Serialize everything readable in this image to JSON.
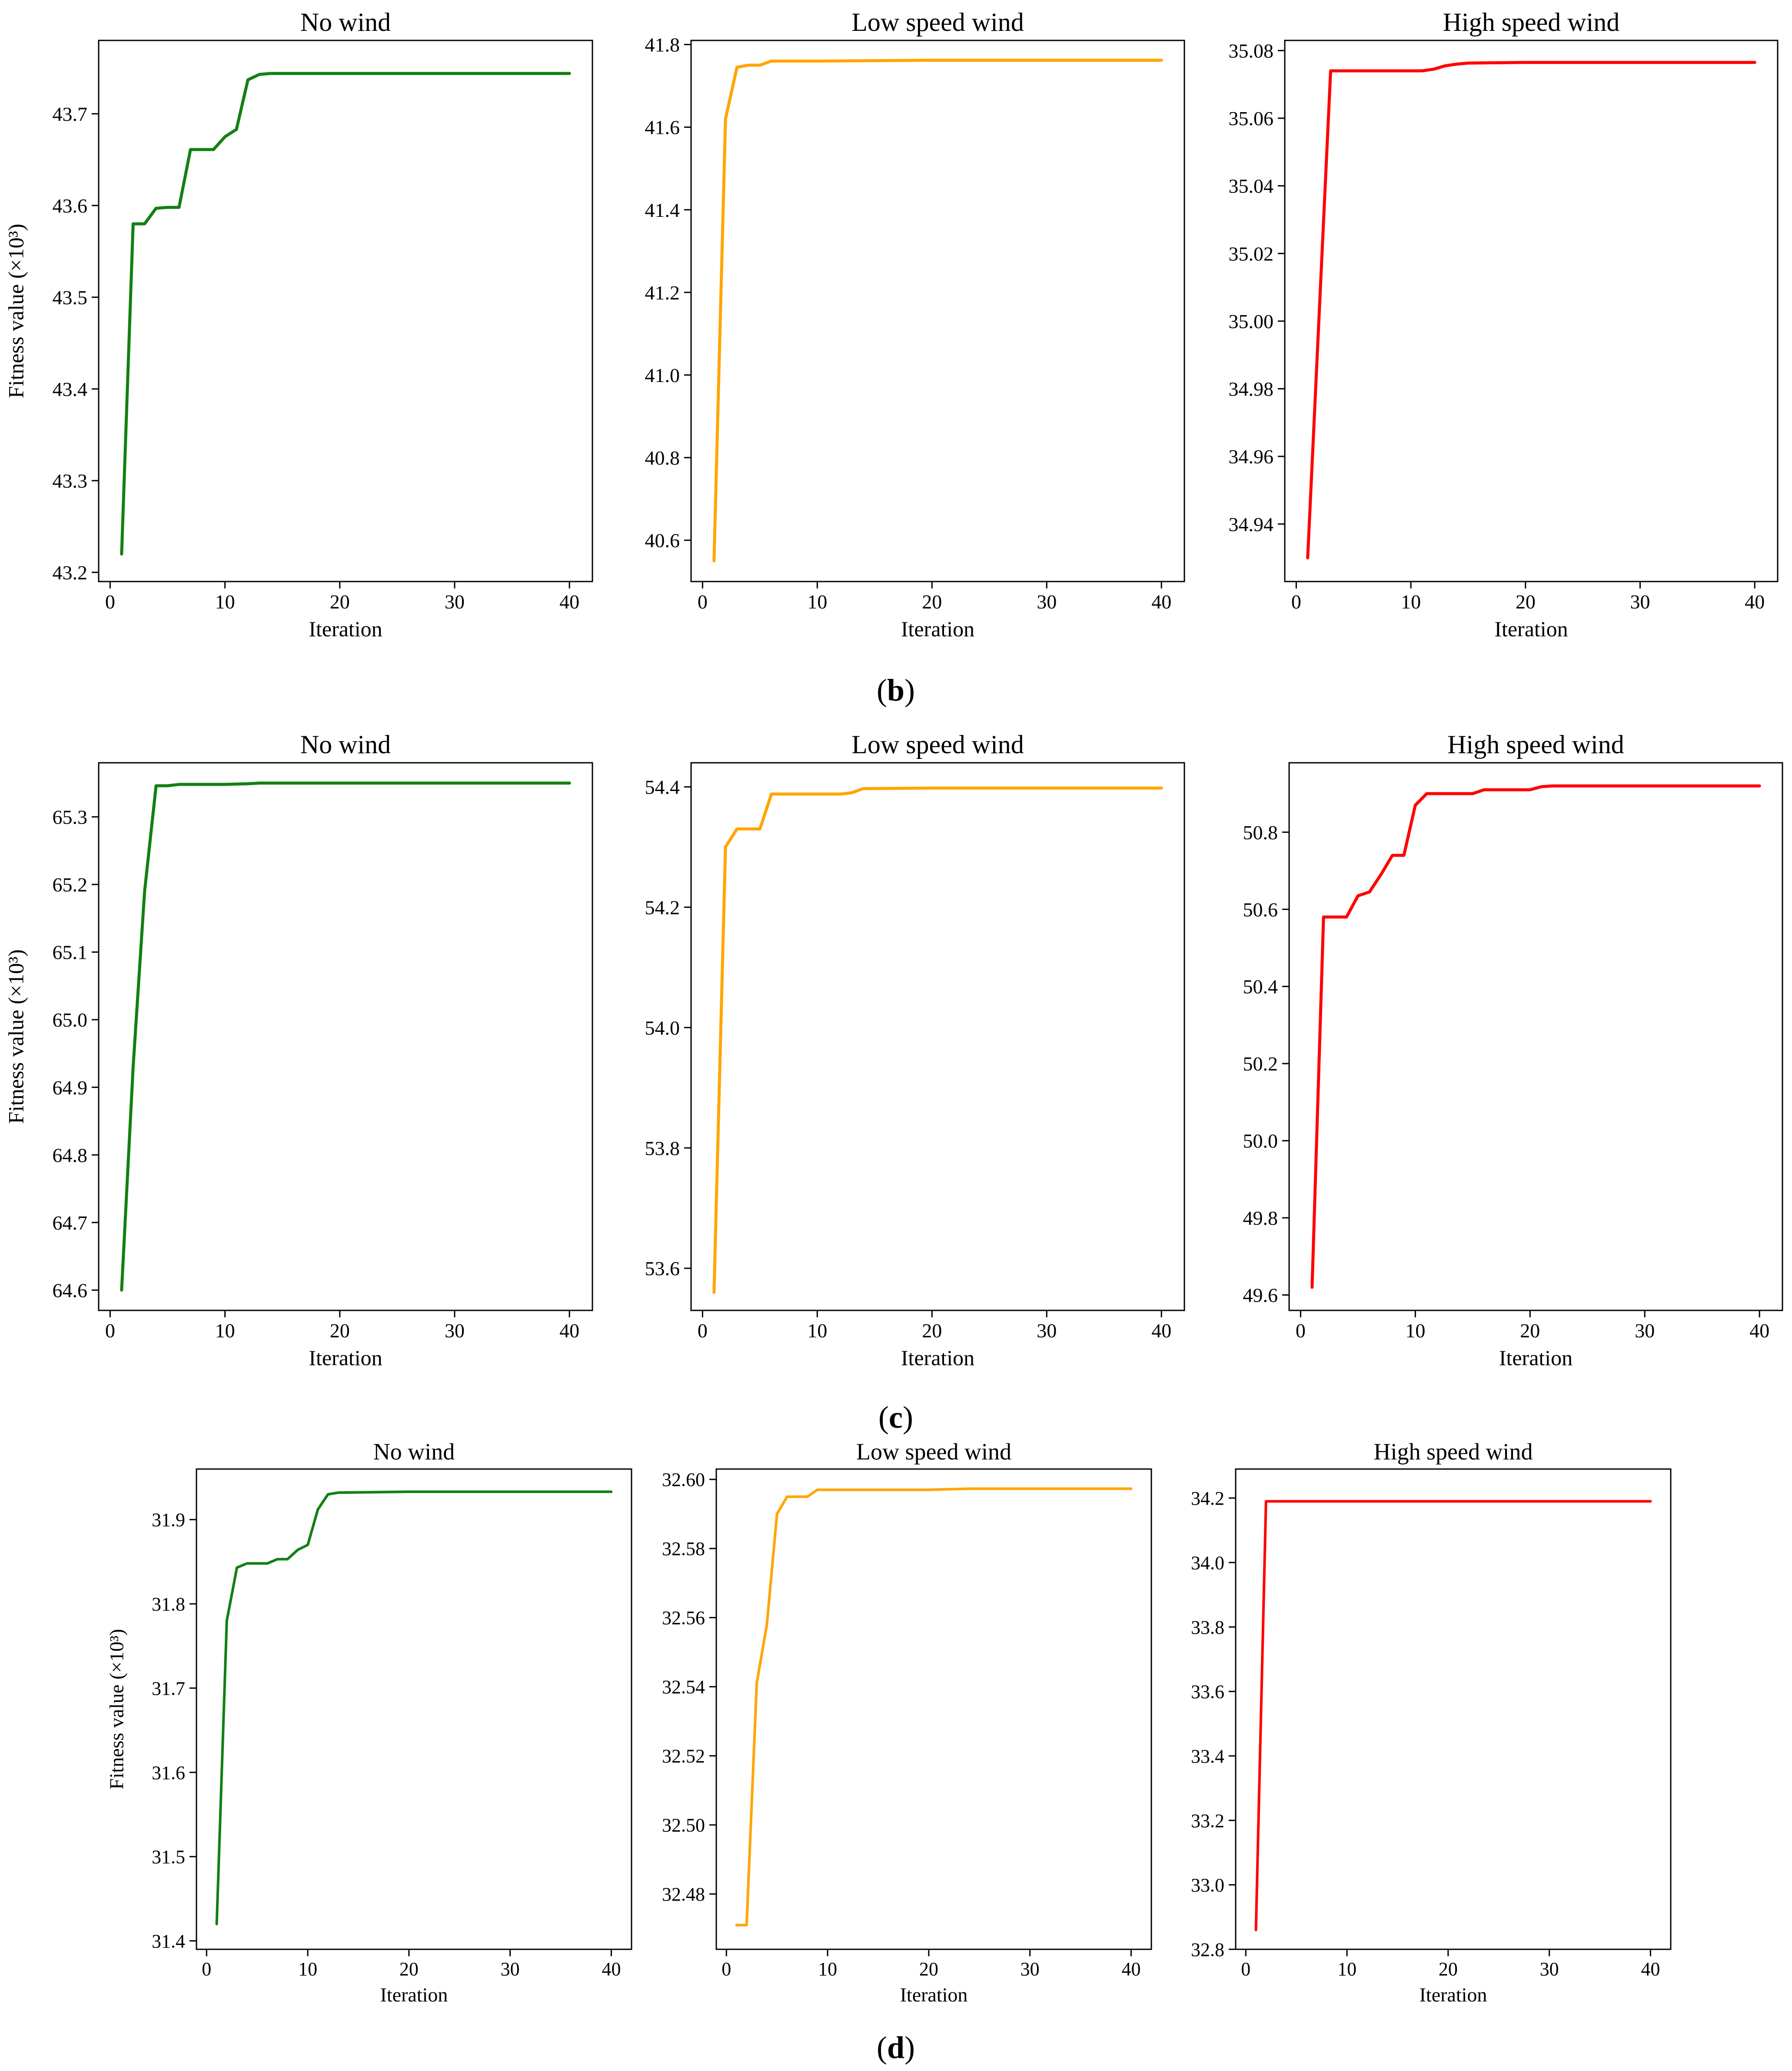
{
  "colors": {
    "no_wind": "#118011",
    "low_wind": "#FFA500",
    "high_wind": "#FF0000",
    "axis": "#000000"
  },
  "y_axis_label": "Fitness value (×10³)",
  "x_axis_label": "Iteration",
  "row_captions": [
    {
      "open": "(",
      "letter": "b",
      "close": ")"
    },
    {
      "open": "(",
      "letter": "c",
      "close": ")"
    },
    {
      "open": "(",
      "letter": "d",
      "close": ")"
    }
  ],
  "chart_data": [
    {
      "row": 0,
      "col": 0,
      "type": "line",
      "title": "No wind",
      "xlabel": "Iteration",
      "ylabel": "Fitness value (×10³)",
      "color": "#118011",
      "xlim": [
        -1,
        42
      ],
      "ylim": [
        43.19,
        43.78
      ],
      "xticks": [
        0,
        10,
        20,
        30,
        40
      ],
      "yticks": [
        43.2,
        43.3,
        43.4,
        43.5,
        43.6,
        43.7
      ],
      "ytick_labels": [
        "43.2",
        "43.3",
        "43.4",
        "43.5",
        "43.6",
        "43.7"
      ],
      "series": [
        {
          "x": [
            1,
            2,
            3,
            4,
            5,
            6,
            7,
            8,
            9,
            10,
            11,
            12,
            13,
            14,
            15,
            20,
            25,
            30,
            35,
            40
          ],
          "y": [
            43.22,
            43.58,
            43.58,
            43.597,
            43.598,
            43.598,
            43.661,
            43.661,
            43.661,
            43.675,
            43.683,
            43.737,
            43.743,
            43.744,
            43.744,
            43.744,
            43.744,
            43.744,
            43.744,
            43.744
          ]
        }
      ]
    },
    {
      "row": 0,
      "col": 1,
      "type": "line",
      "title": "Low speed wind",
      "xlabel": "Iteration",
      "color": "#FFA500",
      "xlim": [
        -1,
        42
      ],
      "ylim": [
        40.5,
        41.81
      ],
      "xticks": [
        0,
        10,
        20,
        30,
        40
      ],
      "yticks": [
        40.6,
        40.8,
        41.0,
        41.2,
        41.4,
        41.6,
        41.8
      ],
      "ytick_labels": [
        "40.6",
        "40.8",
        "41.0",
        "41.2",
        "41.4",
        "41.6",
        "41.8"
      ],
      "series": [
        {
          "x": [
            1,
            2,
            3,
            4,
            5,
            6,
            10,
            20,
            30,
            40
          ],
          "y": [
            40.55,
            41.62,
            41.745,
            41.75,
            41.75,
            41.76,
            41.76,
            41.762,
            41.762,
            41.762
          ]
        }
      ]
    },
    {
      "row": 0,
      "col": 2,
      "type": "line",
      "title": "High speed wind",
      "xlabel": "Iteration",
      "color": "#FF0000",
      "xlim": [
        -1,
        42
      ],
      "ylim": [
        34.923,
        35.083
      ],
      "xticks": [
        0,
        10,
        20,
        30,
        40
      ],
      "yticks": [
        34.94,
        34.96,
        34.98,
        35.0,
        35.02,
        35.04,
        35.06,
        35.08
      ],
      "ytick_labels": [
        "34.94",
        "34.96",
        "34.98",
        "35.00",
        "35.02",
        "35.04",
        "35.06",
        "35.08"
      ],
      "series": [
        {
          "x": [
            1,
            3,
            4,
            10,
            11,
            12,
            13,
            14,
            15,
            20,
            30,
            40
          ],
          "y": [
            34.93,
            35.074,
            35.074,
            35.074,
            35.074,
            35.0745,
            35.0755,
            35.076,
            35.0763,
            35.0765,
            35.0765,
            35.0765
          ]
        }
      ]
    },
    {
      "row": 1,
      "col": 0,
      "type": "line",
      "title": "No wind",
      "xlabel": "Iteration",
      "ylabel": "Fitness value (×10³)",
      "color": "#118011",
      "xlim": [
        -1,
        42
      ],
      "ylim": [
        64.57,
        65.38
      ],
      "xticks": [
        0,
        10,
        20,
        30,
        40
      ],
      "yticks": [
        64.6,
        64.7,
        64.8,
        64.9,
        65.0,
        65.1,
        65.2,
        65.3
      ],
      "ytick_labels": [
        "64.6",
        "64.7",
        "64.8",
        "64.9",
        "65.0",
        "65.1",
        "65.2",
        "65.3"
      ],
      "series": [
        {
          "x": [
            1,
            2,
            3,
            4,
            5,
            6,
            10,
            12,
            13,
            20,
            30,
            40
          ],
          "y": [
            64.6,
            64.93,
            65.19,
            65.346,
            65.346,
            65.348,
            65.348,
            65.349,
            65.35,
            65.35,
            65.35,
            65.35
          ]
        }
      ]
    },
    {
      "row": 1,
      "col": 1,
      "type": "line",
      "title": "Low speed wind",
      "xlabel": "Iteration",
      "color": "#FFA500",
      "xlim": [
        -1,
        42
      ],
      "ylim": [
        53.53,
        54.44
      ],
      "xticks": [
        0,
        10,
        20,
        30,
        40
      ],
      "yticks": [
        53.6,
        53.8,
        54.0,
        54.2,
        54.4
      ],
      "ytick_labels": [
        "53.6",
        "53.8",
        "54.0",
        "54.2",
        "54.4"
      ],
      "series": [
        {
          "x": [
            1,
            2,
            3,
            4,
            5,
            6,
            7,
            12,
            13,
            14,
            20,
            30,
            40
          ],
          "y": [
            53.56,
            54.3,
            54.33,
            54.33,
            54.33,
            54.388,
            54.388,
            54.388,
            54.39,
            54.397,
            54.398,
            54.398,
            54.398
          ]
        }
      ]
    },
    {
      "row": 1,
      "col": 2,
      "type": "line",
      "title": "High speed wind",
      "xlabel": "Iteration",
      "color": "#FF0000",
      "xlim": [
        -1,
        42
      ],
      "ylim": [
        49.56,
        50.98
      ],
      "xticks": [
        0,
        10,
        20,
        30,
        40
      ],
      "yticks": [
        49.6,
        49.8,
        50.0,
        50.2,
        50.4,
        50.6,
        50.8
      ],
      "ytick_labels": [
        "49.6",
        "49.8",
        "50.0",
        "50.2",
        "50.4",
        "50.6",
        "50.8"
      ],
      "series": [
        {
          "x": [
            1,
            2,
            3,
            4,
            5,
            6,
            7,
            8,
            9,
            10,
            11,
            15,
            16,
            20,
            21,
            22,
            30,
            40
          ],
          "y": [
            49.62,
            50.58,
            50.58,
            50.58,
            50.635,
            50.645,
            50.69,
            50.74,
            50.74,
            50.87,
            50.9,
            50.9,
            50.91,
            50.91,
            50.918,
            50.92,
            50.92,
            50.92
          ]
        }
      ]
    },
    {
      "row": 2,
      "col": 0,
      "type": "line",
      "title": "No wind",
      "xlabel": "Iteration",
      "ylabel": "Fitness value (×10³)",
      "color": "#118011",
      "xlim": [
        -1,
        42
      ],
      "ylim": [
        31.39,
        31.96
      ],
      "xticks": [
        0,
        10,
        20,
        30,
        40
      ],
      "yticks": [
        31.4,
        31.5,
        31.6,
        31.7,
        31.8,
        31.9
      ],
      "ytick_labels": [
        "31.4",
        "31.5",
        "31.6",
        "31.7",
        "31.8",
        "31.9"
      ],
      "series": [
        {
          "x": [
            1,
            2,
            3,
            4,
            5,
            6,
            7,
            8,
            9,
            10,
            11,
            12,
            13,
            20,
            30,
            40
          ],
          "y": [
            31.42,
            31.78,
            31.843,
            31.848,
            31.848,
            31.848,
            31.853,
            31.853,
            31.864,
            31.87,
            31.912,
            31.93,
            31.932,
            31.933,
            31.933,
            31.933
          ]
        }
      ]
    },
    {
      "row": 2,
      "col": 1,
      "type": "line",
      "title": "Low speed wind",
      "xlabel": "Iteration",
      "color": "#FFA500",
      "xlim": [
        -1,
        42
      ],
      "ylim": [
        32.464,
        32.603
      ],
      "xticks": [
        0,
        10,
        20,
        30,
        40
      ],
      "yticks": [
        32.48,
        32.5,
        32.52,
        32.54,
        32.56,
        32.58,
        32.6
      ],
      "ytick_labels": [
        "32.48",
        "32.50",
        "32.52",
        "32.54",
        "32.56",
        "32.58",
        "32.60"
      ],
      "series": [
        {
          "x": [
            1,
            2,
            3,
            4,
            5,
            6,
            7,
            8,
            9,
            10,
            20,
            24,
            30,
            40
          ],
          "y": [
            32.471,
            32.471,
            32.541,
            32.558,
            32.59,
            32.595,
            32.595,
            32.595,
            32.597,
            32.597,
            32.597,
            32.5973,
            32.5973,
            32.5973
          ]
        }
      ]
    },
    {
      "row": 2,
      "col": 2,
      "type": "line",
      "title": "High speed wind",
      "xlabel": "Iteration",
      "color": "#FF0000",
      "xlim": [
        -1,
        42
      ],
      "ylim": [
        32.8,
        34.29
      ],
      "xticks": [
        0,
        10,
        20,
        30,
        40
      ],
      "yticks": [
        32.8,
        33.0,
        33.2,
        33.4,
        33.6,
        33.8,
        34.0,
        34.2
      ],
      "ytick_labels": [
        "32.8",
        "33.0",
        "33.2",
        "33.4",
        "33.6",
        "33.8",
        "34.0",
        "34.2"
      ],
      "series": [
        {
          "x": [
            1,
            2,
            10,
            20,
            30,
            40
          ],
          "y": [
            32.86,
            34.19,
            34.19,
            34.19,
            34.19,
            34.19
          ]
        }
      ]
    }
  ]
}
